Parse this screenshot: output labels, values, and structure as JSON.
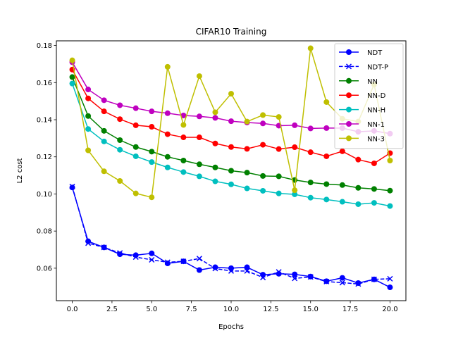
{
  "chart_data": {
    "type": "line",
    "title": "CIFAR10 Training",
    "xlabel": "Epochs",
    "ylabel": "L2 cost",
    "xlim": [
      -1.0,
      21.0
    ],
    "ylim": [
      0.0425,
      0.1825
    ],
    "xticks": [
      0.0,
      2.5,
      5.0,
      7.5,
      10.0,
      12.5,
      15.0,
      17.5,
      20.0
    ],
    "xtick_labels": [
      "0.0",
      "2.5",
      "5.0",
      "7.5",
      "10.0",
      "12.5",
      "15.0",
      "17.5",
      "20.0"
    ],
    "yticks": [
      0.06,
      0.08,
      0.1,
      0.12,
      0.14,
      0.16,
      0.18
    ],
    "ytick_labels": [
      "0.06",
      "0.08",
      "0.10",
      "0.12",
      "0.14",
      "0.16",
      "0.18"
    ],
    "grid": false,
    "legend": "top-right",
    "x": [
      0,
      1,
      2,
      3,
      4,
      5,
      6,
      7,
      8,
      9,
      10,
      11,
      12,
      13,
      14,
      15,
      16,
      17,
      18,
      19,
      20
    ],
    "series": [
      {
        "name": "NDT",
        "color": "#0000ff",
        "marker": "circle",
        "dash": "solid",
        "values": [
          0.1035,
          0.0745,
          0.0712,
          0.0675,
          0.067,
          0.068,
          0.0626,
          0.0637,
          0.059,
          0.0605,
          0.06,
          0.0605,
          0.0565,
          0.057,
          0.0567,
          0.0555,
          0.053,
          0.0548,
          0.052,
          0.054,
          0.0497
        ]
      },
      {
        "name": "NDT-P",
        "color": "#0000ff",
        "marker": "x",
        "dash": "dashed",
        "values": [
          0.104,
          0.0735,
          0.0712,
          0.0682,
          0.066,
          0.0645,
          0.0632,
          0.0637,
          0.0652,
          0.0598,
          0.0585,
          0.0585,
          0.055,
          0.058,
          0.0545,
          0.0553,
          0.0528,
          0.0522,
          0.0515,
          0.054,
          0.0543
        ]
      },
      {
        "name": "NN",
        "color": "#008000",
        "marker": "circle",
        "dash": "solid",
        "values": [
          0.163,
          0.142,
          0.134,
          0.129,
          0.1253,
          0.1228,
          0.12,
          0.118,
          0.116,
          0.1143,
          0.1125,
          0.1115,
          0.1097,
          0.1095,
          0.1075,
          0.1062,
          0.1053,
          0.1048,
          0.1033,
          0.1027,
          0.1018
        ]
      },
      {
        "name": "NN-D",
        "color": "#ff0000",
        "marker": "circle",
        "dash": "solid",
        "values": [
          0.167,
          0.1515,
          0.1445,
          0.1403,
          0.137,
          0.1362,
          0.1322,
          0.1305,
          0.1305,
          0.1272,
          0.1253,
          0.1243,
          0.1265,
          0.1242,
          0.1252,
          0.1225,
          0.1203,
          0.123,
          0.1185,
          0.1165,
          0.122
        ]
      },
      {
        "name": "NN-H",
        "color": "#00bfbf",
        "marker": "circle",
        "dash": "solid",
        "values": [
          0.1595,
          0.135,
          0.1283,
          0.1238,
          0.1203,
          0.1172,
          0.1143,
          0.1118,
          0.1095,
          0.1068,
          0.1052,
          0.103,
          0.1017,
          0.1003,
          0.0998,
          0.098,
          0.097,
          0.0958,
          0.0945,
          0.0952,
          0.0935
        ]
      },
      {
        "name": "NN-1",
        "color": "#bf00bf",
        "marker": "circle",
        "dash": "solid",
        "values": [
          0.171,
          0.1563,
          0.1505,
          0.1478,
          0.1462,
          0.1445,
          0.1435,
          0.1423,
          0.1418,
          0.141,
          0.1392,
          0.1385,
          0.138,
          0.1368,
          0.137,
          0.1353,
          0.1355,
          0.1355,
          0.1335,
          0.134,
          0.1325
        ]
      },
      {
        "name": "NN-3",
        "color": "#bfbf00",
        "marker": "circle",
        "dash": "solid",
        "values": [
          0.172,
          0.1235,
          0.1122,
          0.107,
          0.1003,
          0.0982,
          0.1685,
          0.1372,
          0.1635,
          0.144,
          0.154,
          0.139,
          0.1425,
          0.1415,
          0.102,
          0.1785,
          0.1495,
          0.1405,
          0.139,
          0.159,
          0.118
        ]
      }
    ]
  }
}
